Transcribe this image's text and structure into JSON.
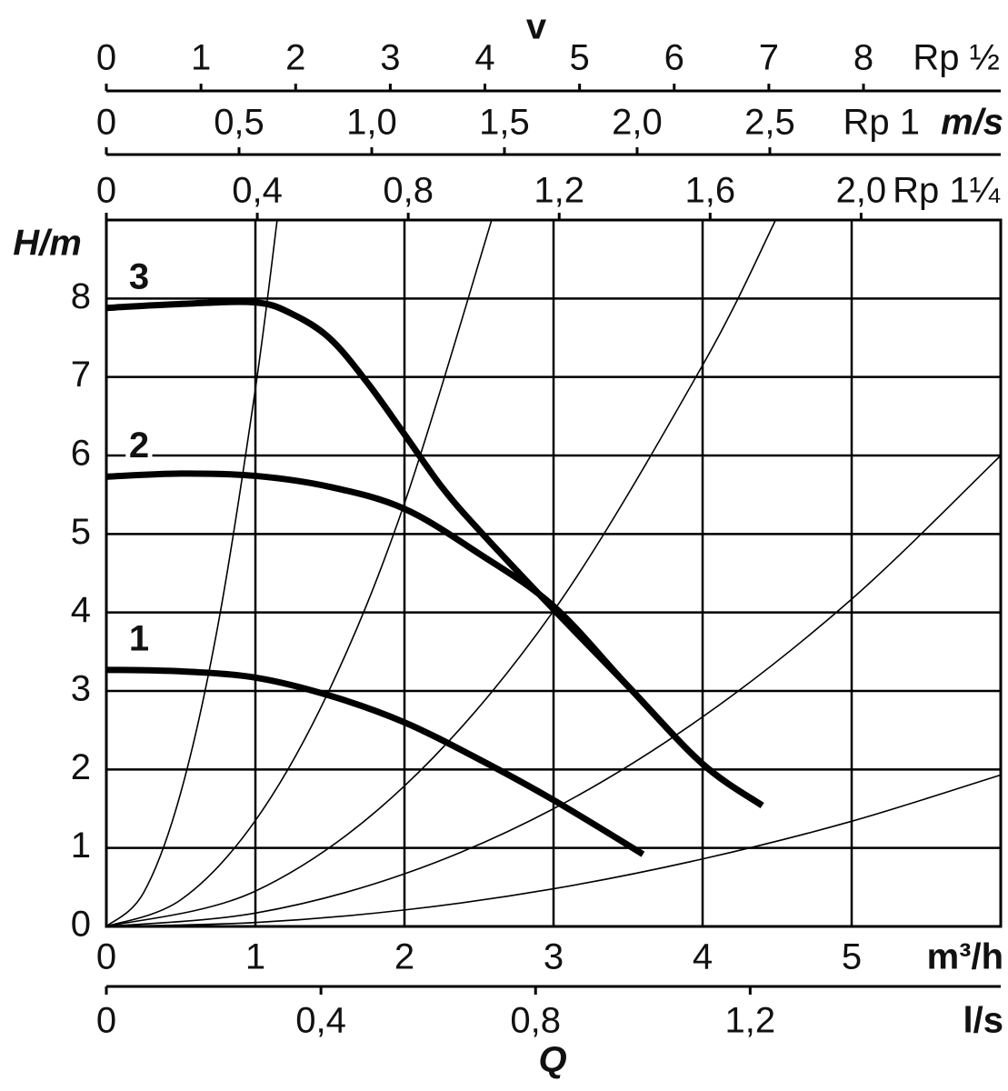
{
  "chart_data": {
    "type": "line",
    "y_label": "H/m",
    "x_label": "Q",
    "x_unit": "m³/h",
    "xlim": [
      0,
      6
    ],
    "xticks": [
      0,
      1,
      2,
      3,
      4,
      5
    ],
    "ylim": [
      0,
      9
    ],
    "yticks": [
      0,
      1,
      2,
      3,
      4,
      5,
      6,
      7,
      8
    ],
    "grid": true,
    "x2": {
      "unit": "l/s",
      "xlim": [
        0,
        1.667
      ],
      "xticks": [
        0,
        {
          "value": 0.4,
          "label": "0,4"
        },
        {
          "value": 0.8,
          "label": "0,8"
        },
        {
          "value": 1.2,
          "label": "1,2"
        }
      ]
    },
    "velocity": {
      "label": "v",
      "unit": "m/s",
      "axes": [
        {
          "name": "Rp ½",
          "xlim": [
            0,
            9.45
          ],
          "xticks": [
            0,
            1,
            2,
            3,
            4,
            5,
            6,
            7,
            8
          ]
        },
        {
          "name": "Rp 1",
          "xlim": [
            0,
            3.37
          ],
          "xticks": [
            0,
            {
              "value": 0.5,
              "label": "0,5"
            },
            {
              "value": 1,
              "label": "1,0"
            },
            {
              "value": 1.5,
              "label": "1,5"
            },
            {
              "value": 2,
              "label": "2,0"
            },
            {
              "value": 2.5,
              "label": "2,5"
            }
          ]
        },
        {
          "name": "Rp 1¼",
          "xlim": [
            0,
            2.37
          ],
          "xticks": [
            0,
            {
              "value": 0.4,
              "label": "0,4"
            },
            {
              "value": 0.8,
              "label": "0,8"
            },
            {
              "value": 1.2,
              "label": "1,2"
            },
            {
              "value": 1.6,
              "label": "1,6"
            },
            {
              "value": 2,
              "label": "2,0"
            }
          ]
        }
      ]
    },
    "series": [
      {
        "name": "1",
        "color": "#000000",
        "x": [
          0,
          0.5,
          1,
          1.5,
          2,
          2.5,
          3,
          3.6
        ],
        "values": [
          3.27,
          3.25,
          3.17,
          2.94,
          2.6,
          2.13,
          1.61,
          0.92
        ]
      },
      {
        "name": "2",
        "color": "#000000",
        "x": [
          0,
          0.5,
          1,
          1.5,
          2,
          2.5,
          3,
          3.5,
          4,
          4.4
        ],
        "values": [
          5.73,
          5.77,
          5.74,
          5.6,
          5.32,
          4.75,
          4.08,
          3.06,
          2.07,
          1.54
        ]
      },
      {
        "name": "3",
        "color": "#000000",
        "x": [
          0,
          0.5,
          1,
          1.25,
          1.5,
          1.75,
          2,
          2.25,
          2.5,
          3,
          3.5,
          4,
          4.4
        ],
        "values": [
          7.88,
          7.93,
          7.95,
          7.8,
          7.49,
          6.93,
          6.27,
          5.6,
          5.05,
          4.04,
          3.06,
          2.07,
          1.54
        ]
      }
    ],
    "system_curves": [
      {
        "x": [
          0,
          0.25,
          0.5,
          0.75,
          1,
          1.146
        ],
        "values": [
          0,
          0.43,
          1.71,
          3.85,
          6.85,
          9
        ]
      },
      {
        "x": [
          0,
          0.5,
          1,
          1.5,
          2,
          2.585
        ],
        "values": [
          0,
          0.34,
          1.35,
          3.03,
          5.39,
          9
        ]
      },
      {
        "x": [
          0,
          1,
          2,
          3,
          4,
          4.49
        ],
        "values": [
          0,
          0.45,
          1.79,
          4.02,
          7.15,
          9
        ]
      },
      {
        "x": [
          0,
          1,
          2,
          3,
          4,
          5,
          6
        ],
        "values": [
          0,
          0.17,
          0.67,
          1.5,
          2.67,
          4.17,
          6
        ]
      },
      {
        "x": [
          0,
          1,
          2,
          3,
          4,
          5,
          6
        ],
        "values": [
          0,
          0.05,
          0.21,
          0.48,
          0.86,
          1.34,
          1.93
        ]
      }
    ]
  }
}
